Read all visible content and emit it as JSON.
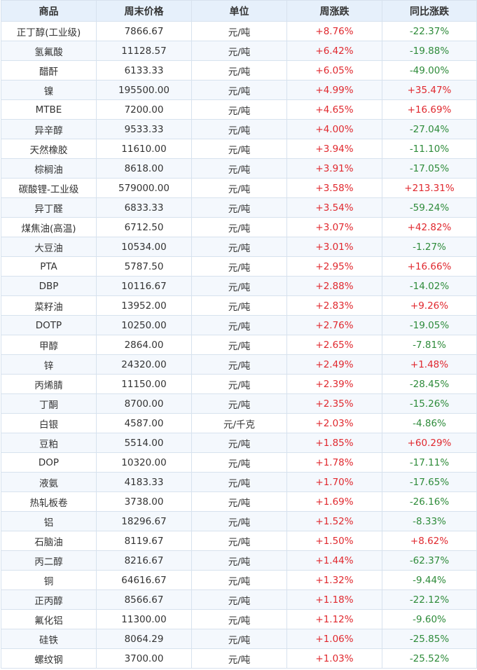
{
  "colors": {
    "header_bg": "#e6f0fb",
    "border": "#d7e2ee",
    "up": "#e0282e",
    "down": "#2e8b3a",
    "text": "#333333"
  },
  "table": {
    "headers": [
      "商品",
      "周末价格",
      "单位",
      "周涨跌",
      "同比涨跌"
    ],
    "rows": [
      [
        "正丁醇(工业级)",
        "7866.67",
        "元/吨",
        "+8.76%",
        "-22.37%"
      ],
      [
        "氢氟酸",
        "11128.57",
        "元/吨",
        "+6.42%",
        "-19.88%"
      ],
      [
        "醋酐",
        "6133.33",
        "元/吨",
        "+6.05%",
        "-49.00%"
      ],
      [
        "镍",
        "195500.00",
        "元/吨",
        "+4.99%",
        "+35.47%"
      ],
      [
        "MTBE",
        "7200.00",
        "元/吨",
        "+4.65%",
        "+16.69%"
      ],
      [
        "异辛醇",
        "9533.33",
        "元/吨",
        "+4.00%",
        "-27.04%"
      ],
      [
        "天然橡胶",
        "11610.00",
        "元/吨",
        "+3.94%",
        "-11.10%"
      ],
      [
        "棕榈油",
        "8618.00",
        "元/吨",
        "+3.91%",
        "-17.05%"
      ],
      [
        "碳酸锂-工业级",
        "579000.00",
        "元/吨",
        "+3.58%",
        "+213.31%"
      ],
      [
        "异丁醛",
        "6833.33",
        "元/吨",
        "+3.54%",
        "-59.24%"
      ],
      [
        "煤焦油(高温)",
        "6712.50",
        "元/吨",
        "+3.07%",
        "+42.82%"
      ],
      [
        "大豆油",
        "10534.00",
        "元/吨",
        "+3.01%",
        "-1.27%"
      ],
      [
        "PTA",
        "5787.50",
        "元/吨",
        "+2.95%",
        "+16.66%"
      ],
      [
        "DBP",
        "10116.67",
        "元/吨",
        "+2.88%",
        "-14.02%"
      ],
      [
        "菜籽油",
        "13952.00",
        "元/吨",
        "+2.83%",
        "+9.26%"
      ],
      [
        "DOTP",
        "10250.00",
        "元/吨",
        "+2.76%",
        "-19.05%"
      ],
      [
        "甲醇",
        "2864.00",
        "元/吨",
        "+2.65%",
        "-7.81%"
      ],
      [
        "锌",
        "24320.00",
        "元/吨",
        "+2.49%",
        "+1.48%"
      ],
      [
        "丙烯腈",
        "11150.00",
        "元/吨",
        "+2.39%",
        "-28.45%"
      ],
      [
        "丁酮",
        "8700.00",
        "元/吨",
        "+2.35%",
        "-15.26%"
      ],
      [
        "白银",
        "4587.00",
        "元/千克",
        "+2.03%",
        "-4.86%"
      ],
      [
        "豆粕",
        "5514.00",
        "元/吨",
        "+1.85%",
        "+60.29%"
      ],
      [
        "DOP",
        "10320.00",
        "元/吨",
        "+1.78%",
        "-17.11%"
      ],
      [
        "液氨",
        "4183.33",
        "元/吨",
        "+1.70%",
        "-17.65%"
      ],
      [
        "热轧板卷",
        "3738.00",
        "元/吨",
        "+1.69%",
        "-26.16%"
      ],
      [
        "铝",
        "18296.67",
        "元/吨",
        "+1.52%",
        "-8.33%"
      ],
      [
        "石脑油",
        "8119.67",
        "元/吨",
        "+1.50%",
        "+8.62%"
      ],
      [
        "丙二醇",
        "8216.67",
        "元/吨",
        "+1.44%",
        "-62.37%"
      ],
      [
        "铜",
        "64616.67",
        "元/吨",
        "+1.32%",
        "-9.44%"
      ],
      [
        "正丙醇",
        "8566.67",
        "元/吨",
        "+1.18%",
        "-22.12%"
      ],
      [
        "氟化铝",
        "11300.00",
        "元/吨",
        "+1.12%",
        "-9.60%"
      ],
      [
        "硅铁",
        "8064.29",
        "元/吨",
        "+1.06%",
        "-25.85%"
      ],
      [
        "螺纹钢",
        "3700.00",
        "元/吨",
        "+1.03%",
        "-25.52%"
      ]
    ]
  }
}
